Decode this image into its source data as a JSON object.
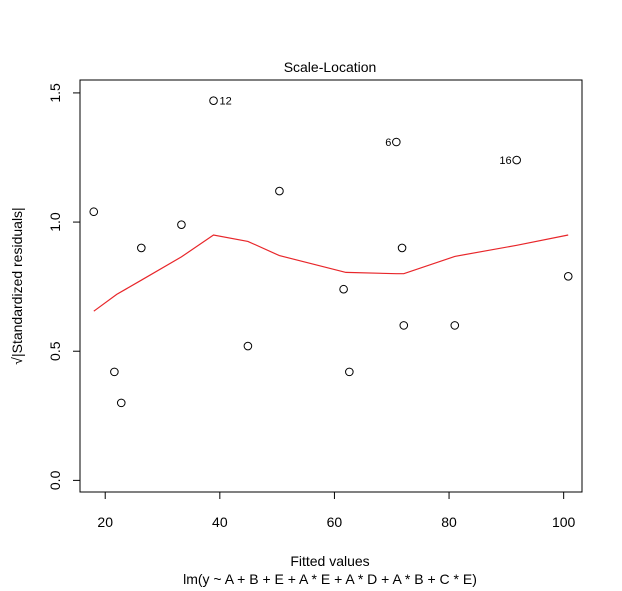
{
  "chart_data": {
    "type": "scatter",
    "title": "Scale-Location",
    "xlabel": "Fitted values",
    "subtitle": "lm(y ~ A + B + E + A * E + A * D + A * B + C * E)",
    "ylabel": "√|Standardized residuals|",
    "xlim": [
      15.6,
      103.2
    ],
    "ylim": [
      -0.045,
      1.55
    ],
    "xticks": [
      20,
      40,
      60,
      80,
      100
    ],
    "yticks": [
      0.0,
      0.5,
      1.0,
      1.5
    ],
    "xtick_labels": [
      "20",
      "40",
      "60",
      "80",
      "100"
    ],
    "ytick_labels": [
      "0.0",
      "0.5",
      "1.0",
      "1.5"
    ],
    "grid": false,
    "points": [
      {
        "x": 18.0,
        "y": 1.04,
        "label": ""
      },
      {
        "x": 21.6,
        "y": 0.42,
        "label": ""
      },
      {
        "x": 22.8,
        "y": 0.3,
        "label": ""
      },
      {
        "x": 26.3,
        "y": 0.9,
        "label": ""
      },
      {
        "x": 33.3,
        "y": 0.99,
        "label": ""
      },
      {
        "x": 38.9,
        "y": 1.47,
        "label": "12"
      },
      {
        "x": 44.9,
        "y": 0.52,
        "label": ""
      },
      {
        "x": 50.4,
        "y": 1.12,
        "label": ""
      },
      {
        "x": 61.6,
        "y": 0.74,
        "label": ""
      },
      {
        "x": 62.6,
        "y": 0.42,
        "label": ""
      },
      {
        "x": 70.8,
        "y": 1.31,
        "label": "6"
      },
      {
        "x": 71.8,
        "y": 0.9,
        "label": ""
      },
      {
        "x": 72.1,
        "y": 0.6,
        "label": ""
      },
      {
        "x": 81.0,
        "y": 0.6,
        "label": ""
      },
      {
        "x": 91.8,
        "y": 1.24,
        "label": "16"
      },
      {
        "x": 100.8,
        "y": 0.79,
        "label": ""
      }
    ],
    "smoother": {
      "name": "",
      "color": "#e8262a",
      "x": [
        18.0,
        22.0,
        26.3,
        33.3,
        38.9,
        44.9,
        50.4,
        62.0,
        70.8,
        72.1,
        81.0,
        91.8,
        100.8
      ],
      "y": [
        0.655,
        0.72,
        0.775,
        0.865,
        0.95,
        0.925,
        0.87,
        0.805,
        0.8,
        0.8,
        0.867,
        0.91,
        0.95
      ]
    }
  }
}
